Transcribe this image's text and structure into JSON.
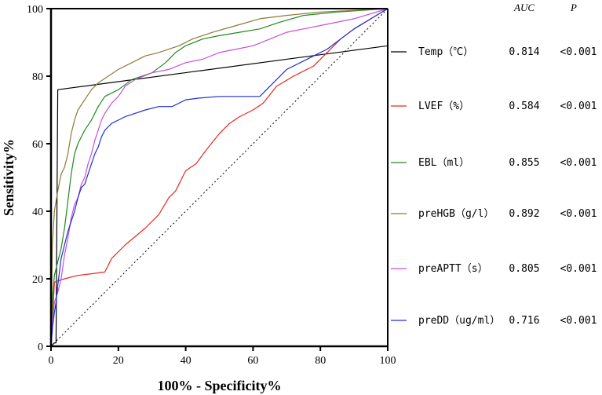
{
  "chart_data": {
    "type": "line",
    "title": "",
    "xlabel": "100% - Specificity%",
    "ylabel": "Sensitivity%",
    "xlim": [
      0,
      100
    ],
    "ylim": [
      0,
      100
    ],
    "xticks": [
      "0",
      "20",
      "40",
      "60",
      "80",
      "100"
    ],
    "yticks": [
      "0",
      "20",
      "40",
      "60",
      "80",
      "100"
    ],
    "grid": false,
    "legend_position": "right",
    "header": {
      "auc": "AUC",
      "p": "P"
    },
    "reference_line": {
      "name": "chance",
      "style": "dotted",
      "points": [
        [
          0,
          0
        ],
        [
          100,
          100
        ]
      ]
    },
    "series": [
      {
        "name": "Temp（℃）",
        "auc": "0.814",
        "p": "<0.001",
        "color": "#000000",
        "points": [
          [
            0,
            0
          ],
          [
            1,
            1
          ],
          [
            1.5,
            1
          ],
          [
            2,
            76
          ],
          [
            100,
            89
          ],
          [
            100,
            100
          ]
        ]
      },
      {
        "name": "LVEF（%）",
        "auc": "0.584",
        "p": "<0.001",
        "color": "#e8281e",
        "points": [
          [
            0,
            0
          ],
          [
            1,
            19
          ],
          [
            4,
            20
          ],
          [
            8,
            21
          ],
          [
            12,
            21.5
          ],
          [
            16,
            22
          ],
          [
            18,
            26
          ],
          [
            22,
            30
          ],
          [
            28,
            35
          ],
          [
            32,
            39
          ],
          [
            35,
            44
          ],
          [
            37,
            46
          ],
          [
            40,
            52
          ],
          [
            43,
            54
          ],
          [
            46,
            58
          ],
          [
            50,
            63
          ],
          [
            53,
            66
          ],
          [
            56,
            68
          ],
          [
            60,
            70
          ],
          [
            63,
            72
          ],
          [
            67,
            77
          ],
          [
            72,
            80
          ],
          [
            78,
            83
          ],
          [
            82,
            87
          ],
          [
            86,
            91
          ],
          [
            90,
            94
          ],
          [
            95,
            97
          ],
          [
            100,
            100
          ]
        ]
      },
      {
        "name": "EBL（ml）",
        "auc": "0.855",
        "p": "<0.001",
        "color": "#1e8a1e",
        "points": [
          [
            0,
            0
          ],
          [
            0.5,
            15
          ],
          [
            1,
            21
          ],
          [
            2,
            25
          ],
          [
            3,
            29
          ],
          [
            4,
            35
          ],
          [
            5,
            43
          ],
          [
            6,
            51
          ],
          [
            7,
            57
          ],
          [
            8,
            60
          ],
          [
            9,
            62
          ],
          [
            10,
            64
          ],
          [
            12,
            67
          ],
          [
            14,
            71
          ],
          [
            16,
            74
          ],
          [
            20,
            76
          ],
          [
            24,
            79
          ],
          [
            30,
            81
          ],
          [
            34,
            84
          ],
          [
            37,
            87
          ],
          [
            40,
            89
          ],
          [
            45,
            91
          ],
          [
            50,
            92
          ],
          [
            56,
            93
          ],
          [
            62,
            94
          ],
          [
            68,
            96
          ],
          [
            75,
            98
          ],
          [
            85,
            99
          ],
          [
            100,
            100
          ]
        ]
      },
      {
        "name": "preHGB（g/l）",
        "auc": "0.892",
        "p": "<0.001",
        "color": "#8b7a3a",
        "points": [
          [
            0,
            0
          ],
          [
            0.4,
            30
          ],
          [
            1,
            40
          ],
          [
            2,
            46
          ],
          [
            3,
            51
          ],
          [
            4,
            53
          ],
          [
            5,
            57
          ],
          [
            6,
            63
          ],
          [
            7,
            67
          ],
          [
            8,
            70
          ],
          [
            10,
            73
          ],
          [
            12,
            76
          ],
          [
            14,
            78
          ],
          [
            17,
            80
          ],
          [
            20,
            82
          ],
          [
            24,
            84
          ],
          [
            28,
            86
          ],
          [
            32,
            87
          ],
          [
            35,
            88
          ],
          [
            38,
            89
          ],
          [
            42,
            91
          ],
          [
            48,
            93
          ],
          [
            55,
            95
          ],
          [
            62,
            97
          ],
          [
            70,
            98
          ],
          [
            80,
            99
          ],
          [
            100,
            100
          ]
        ]
      },
      {
        "name": "preAPTT（s）",
        "auc": "0.805",
        "p": "<0.001",
        "color": "#c64fd8",
        "points": [
          [
            0,
            0
          ],
          [
            0.5,
            8
          ],
          [
            1,
            13
          ],
          [
            2,
            16
          ],
          [
            3,
            20
          ],
          [
            4,
            27
          ],
          [
            5,
            32
          ],
          [
            6,
            38
          ],
          [
            7,
            42
          ],
          [
            8,
            44
          ],
          [
            9,
            48
          ],
          [
            10,
            50
          ],
          [
            11,
            54
          ],
          [
            12,
            57
          ],
          [
            13,
            61
          ],
          [
            14,
            64
          ],
          [
            15,
            67
          ],
          [
            16,
            69
          ],
          [
            18,
            72
          ],
          [
            20,
            74
          ],
          [
            22,
            77
          ],
          [
            25,
            79
          ],
          [
            30,
            81
          ],
          [
            35,
            82
          ],
          [
            40,
            84
          ],
          [
            45,
            85
          ],
          [
            50,
            87
          ],
          [
            55,
            88
          ],
          [
            60,
            89
          ],
          [
            65,
            91
          ],
          [
            70,
            93
          ],
          [
            75,
            94
          ],
          [
            80,
            95
          ],
          [
            90,
            97
          ],
          [
            100,
            100
          ]
        ]
      },
      {
        "name": "preDD（ug/ml）",
        "auc": "0.716",
        "p": "<0.001",
        "color": "#1e2ed8",
        "points": [
          [
            0,
            0
          ],
          [
            0.5,
            6
          ],
          [
            1,
            10
          ],
          [
            1.5,
            13
          ],
          [
            2,
            18
          ],
          [
            3,
            26
          ],
          [
            4,
            30
          ],
          [
            5,
            34
          ],
          [
            6,
            37
          ],
          [
            7,
            40
          ],
          [
            8,
            44
          ],
          [
            9,
            47
          ],
          [
            10,
            48
          ],
          [
            11,
            51
          ],
          [
            12,
            54
          ],
          [
            13,
            57
          ],
          [
            14,
            59
          ],
          [
            15,
            62
          ],
          [
            16,
            64
          ],
          [
            17,
            65
          ],
          [
            18,
            66
          ],
          [
            20,
            67
          ],
          [
            22,
            68
          ],
          [
            25,
            69
          ],
          [
            28,
            70
          ],
          [
            32,
            71
          ],
          [
            36,
            71
          ],
          [
            38,
            72
          ],
          [
            40,
            73
          ],
          [
            44,
            73.5
          ],
          [
            50,
            74
          ],
          [
            56,
            74
          ],
          [
            60,
            74
          ],
          [
            62,
            74
          ],
          [
            64,
            76
          ],
          [
            67,
            79
          ],
          [
            70,
            82
          ],
          [
            74,
            84
          ],
          [
            78,
            86
          ],
          [
            82,
            88
          ],
          [
            86,
            91
          ],
          [
            90,
            94
          ],
          [
            95,
            97
          ],
          [
            100,
            100
          ]
        ]
      }
    ]
  }
}
